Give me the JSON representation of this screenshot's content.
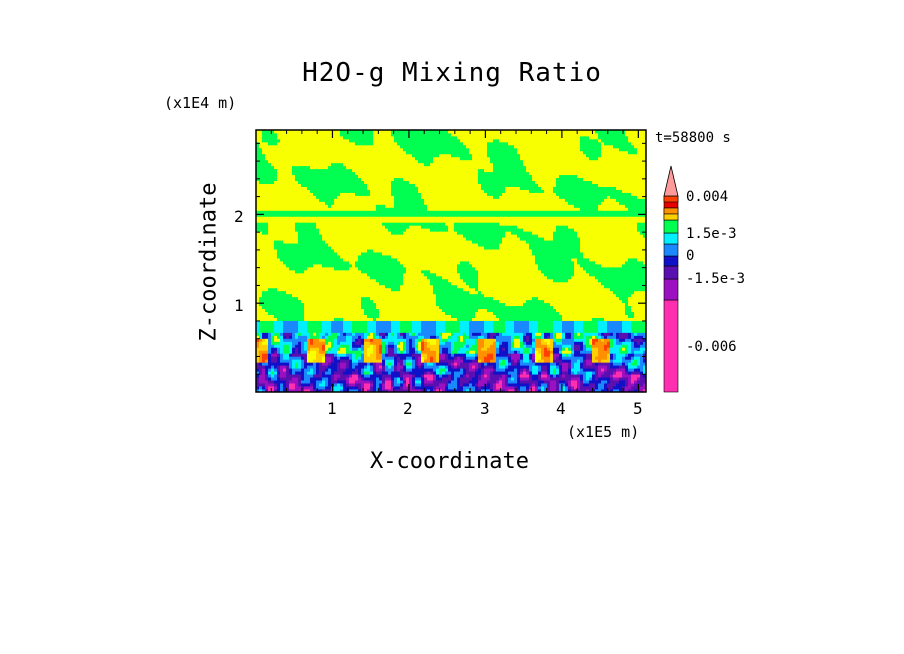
{
  "chart_data": {
    "type": "heatmap",
    "title": "H2O-g Mixing Ratio",
    "xlabel": "X-coordinate",
    "ylabel": "Z-coordinate",
    "x_scale_label": "(x1E5 m)",
    "y_scale_label": "(x1E4 m)",
    "time_label": "t=58800 s",
    "x_ticks": [
      "1",
      "2",
      "3",
      "4",
      "5"
    ],
    "x_tick_values": [
      1,
      2,
      3,
      4,
      5
    ],
    "y_ticks": [
      "1",
      "2"
    ],
    "y_tick_values": [
      1,
      2
    ],
    "xlim": [
      0,
      5.1
    ],
    "ylim": [
      0,
      2.95
    ],
    "colorbar": {
      "levels": [
        {
          "color": "#ff2fb0"
        },
        {
          "color": "#9b10c0"
        },
        {
          "color": "#5a10b0"
        },
        {
          "color": "#1010c8"
        },
        {
          "color": "#1a88ff"
        },
        {
          "color": "#00f0ff"
        },
        {
          "color": "#00ff50"
        },
        {
          "color": "#f8ff00"
        },
        {
          "color": "#ffd000"
        },
        {
          "color": "#ff9000"
        },
        {
          "color": "#ff4000"
        },
        {
          "color": "#e80000"
        },
        {
          "color": "#ff9a9a"
        }
      ],
      "tick_labels": [
        "0.004",
        "1.5e-3",
        "0",
        "-1.5e-3",
        "-0.006"
      ]
    },
    "grid": false
  }
}
